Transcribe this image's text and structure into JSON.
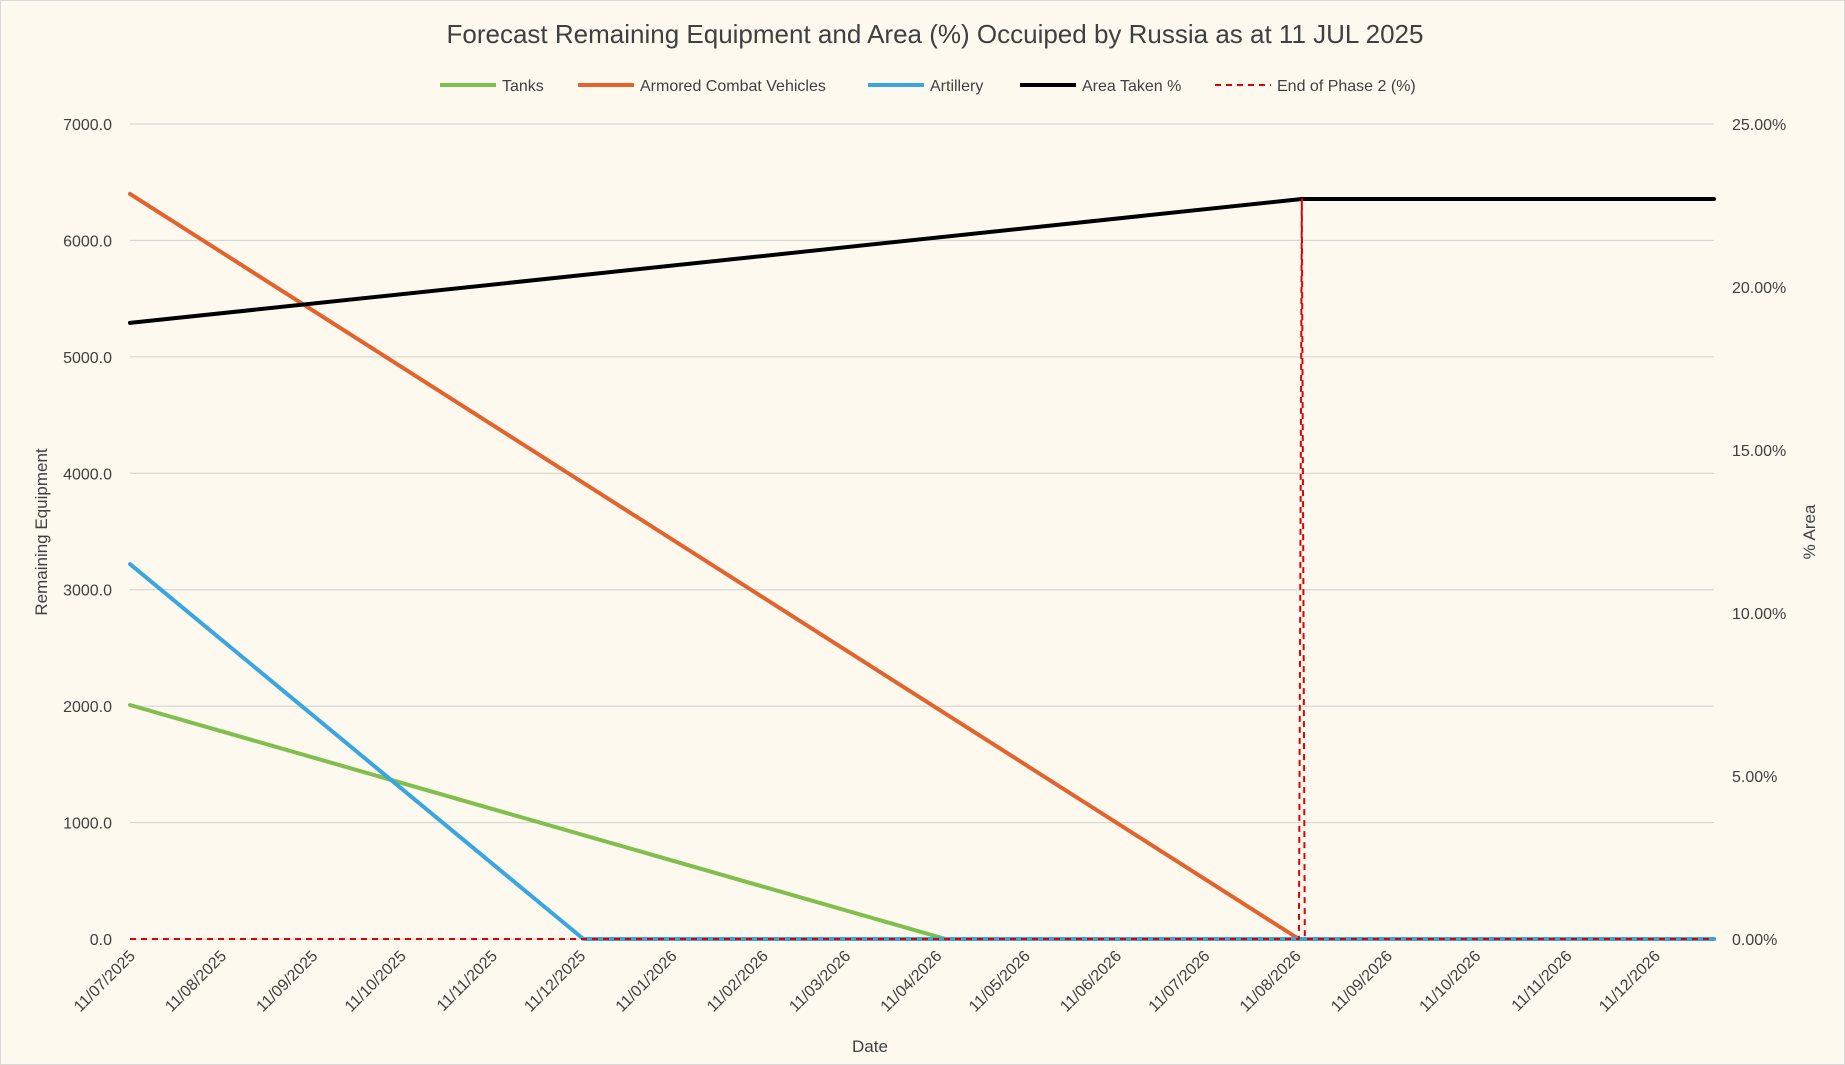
{
  "chart_data": {
    "type": "line",
    "title": "Forecast Remaining Equipment and Area (%) Occuiped by Russia as at 11 JUL 2025",
    "xlabel": "Date",
    "ylabel": "Remaining Equipment",
    "y2label": "% Area",
    "ylim": [
      0,
      7000
    ],
    "y2lim": [
      0,
      25
    ],
    "x_range": [
      "2025-07-11",
      "2026-12-31"
    ],
    "x_tick_dates": [
      "2025-07-11",
      "2025-08-11",
      "2025-09-11",
      "2025-10-11",
      "2025-11-11",
      "2025-12-11",
      "2026-01-11",
      "2026-02-11",
      "2026-03-11",
      "2026-04-11",
      "2026-05-11",
      "2026-06-11",
      "2026-07-11",
      "2026-08-11",
      "2026-09-11",
      "2026-10-11",
      "2026-11-11",
      "2026-12-11"
    ],
    "x_tick_labels": [
      "11/07/2025",
      "11/08/2025",
      "11/09/2025",
      "11/10/2025",
      "11/11/2025",
      "11/12/2025",
      "11/01/2026",
      "11/02/2026",
      "11/03/2026",
      "11/04/2026",
      "11/05/2026",
      "11/06/2026",
      "11/07/2026",
      "11/08/2026",
      "11/09/2026",
      "11/10/2026",
      "11/11/2026",
      "11/12/2026"
    ],
    "y_tick_labels": [
      "0.0",
      "1000.0",
      "2000.0",
      "3000.0",
      "4000.0",
      "5000.0",
      "6000.0",
      "7000.0"
    ],
    "y2_tick_labels": [
      "0.00%",
      "5.00%",
      "10.00%",
      "15.00%",
      "20.00%",
      "25.00%"
    ],
    "grid": true,
    "legend_position": "top",
    "series": [
      {
        "name": "Tanks",
        "axis": "left",
        "color": "#7fbf4d",
        "style": "solid",
        "points": [
          [
            "2025-07-11",
            2010
          ],
          [
            "2026-04-14",
            0
          ],
          [
            "2026-12-31",
            0
          ]
        ]
      },
      {
        "name": "Armored Combat Vehicles",
        "axis": "left",
        "color": "#e2632d",
        "style": "solid",
        "points": [
          [
            "2025-07-11",
            6400
          ],
          [
            "2026-08-12",
            0
          ],
          [
            "2026-12-31",
            0
          ]
        ]
      },
      {
        "name": "Artillery",
        "axis": "left",
        "color": "#3aa6e0",
        "style": "solid",
        "points": [
          [
            "2025-07-11",
            3220
          ],
          [
            "2025-12-12",
            0
          ],
          [
            "2026-12-31",
            0
          ]
        ]
      },
      {
        "name": "Area Taken %",
        "axis": "right",
        "color": "#000000",
        "style": "solid",
        "points": [
          [
            "2025-07-11",
            18.9
          ],
          [
            "2026-08-13",
            22.7
          ],
          [
            "2026-12-31",
            22.7
          ]
        ]
      },
      {
        "name": "End of Phase 2 (%)",
        "axis": "right",
        "color": "#e00000",
        "style": "dashed",
        "points": [
          [
            "2025-07-11",
            0
          ],
          [
            "2026-08-12",
            0
          ],
          [
            "2026-08-13",
            22.7
          ],
          [
            "2026-08-14",
            0
          ],
          [
            "2026-12-31",
            0
          ]
        ]
      }
    ]
  }
}
